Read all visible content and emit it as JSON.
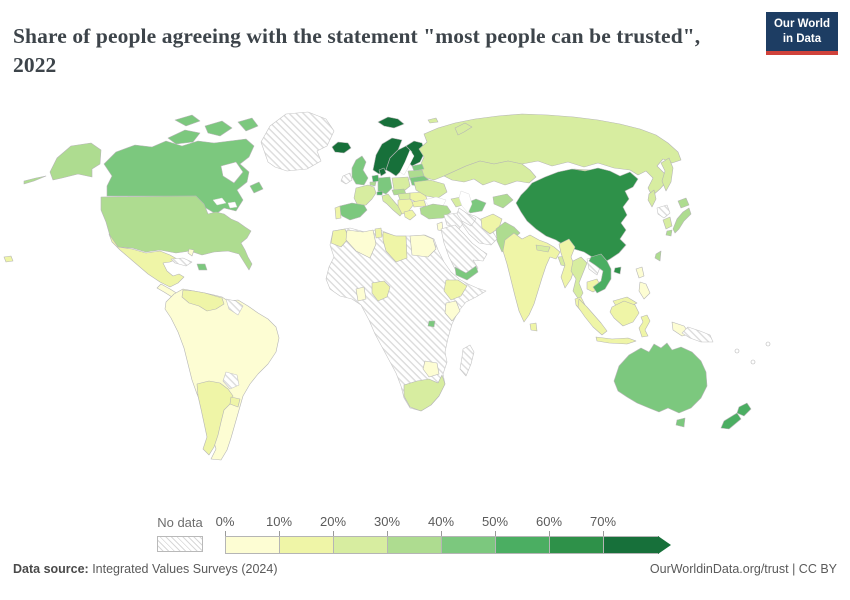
{
  "header": {
    "title": "Share of people agreeing with the statement \"most people can be trusted\", 2022"
  },
  "logo": {
    "line1": "Our World",
    "line2": "in Data",
    "bg": "#1d3d63",
    "accent": "#d0423b"
  },
  "legend": {
    "no_data_label": "No data",
    "ticks": [
      "0%",
      "10%",
      "20%",
      "30%",
      "40%",
      "50%",
      "60%",
      "70%"
    ],
    "bin_colors": [
      "#fdfdd3",
      "#eff5a7",
      "#d7eda0",
      "#aedc90",
      "#7cc87e",
      "#4bae62",
      "#2e9149",
      "#17703a"
    ]
  },
  "footer": {
    "source_label": "Data source:",
    "source_value": " Integrated Values Surveys (2024)",
    "right_text": "OurWorldinData.org/trust | CC BY"
  },
  "chart_data": {
    "type": "choropleth",
    "title": "Share of people agreeing with the statement \"most people can be trusted\", 2022",
    "unit": "%",
    "legend_bins": [
      "0-10%",
      "10-20%",
      "20-30%",
      "30-40%",
      "40-50%",
      "50-60%",
      "60-70%",
      "70%+"
    ],
    "legend_colors": [
      "#fdfdd3",
      "#eff5a7",
      "#d7eda0",
      "#aedc90",
      "#7cc87e",
      "#4bae62",
      "#2e9149",
      "#17703a"
    ],
    "no_data_label": "No data",
    "countries": [
      {
        "name": "Norway",
        "range": "70%+"
      },
      {
        "name": "Sweden",
        "range": "70%+"
      },
      {
        "name": "Finland",
        "range": "70%+"
      },
      {
        "name": "Denmark",
        "range": "70%+"
      },
      {
        "name": "Iceland",
        "range": "70%+"
      },
      {
        "name": "China",
        "range": "60-70%"
      },
      {
        "name": "Netherlands",
        "range": "50-60%"
      },
      {
        "name": "Switzerland",
        "range": "50-60%"
      },
      {
        "name": "New Zealand",
        "range": "50-60%"
      },
      {
        "name": "Vietnam",
        "range": "50-60%"
      },
      {
        "name": "Canada",
        "range": "40-50%"
      },
      {
        "name": "Australia",
        "range": "40-50%"
      },
      {
        "name": "Germany",
        "range": "40-50%"
      },
      {
        "name": "United Kingdom",
        "range": "40-50%"
      },
      {
        "name": "Spain",
        "range": "40-50%"
      },
      {
        "name": "Estonia",
        "range": "40-50%"
      },
      {
        "name": "Belarus",
        "range": "40-50%"
      },
      {
        "name": "Uzbekistan",
        "range": "40-50%"
      },
      {
        "name": "Yemen",
        "range": "40-50%"
      },
      {
        "name": "United States",
        "range": "30-40%"
      },
      {
        "name": "Japan",
        "range": "30-40%"
      },
      {
        "name": "Pakistan",
        "range": "30-40%"
      },
      {
        "name": "Turkey",
        "range": "30-40%"
      },
      {
        "name": "Taiwan",
        "range": "30-40%"
      },
      {
        "name": "Russia",
        "range": "20-30%"
      },
      {
        "name": "Kazakhstan",
        "range": "20-30%"
      },
      {
        "name": "Mongolia",
        "range": "20-30%"
      },
      {
        "name": "Ukraine",
        "range": "20-30%"
      },
      {
        "name": "Poland",
        "range": "20-30%"
      },
      {
        "name": "France",
        "range": "20-30%"
      },
      {
        "name": "Italy",
        "range": "20-30%"
      },
      {
        "name": "South Korea",
        "range": "20-30%"
      },
      {
        "name": "Thailand",
        "range": "20-30%"
      },
      {
        "name": "South Africa",
        "range": "20-30%"
      },
      {
        "name": "Bangladesh",
        "range": "20-30%"
      },
      {
        "name": "Nepal",
        "range": "20-30%"
      },
      {
        "name": "India",
        "range": "10-20%"
      },
      {
        "name": "Mexico",
        "range": "10-20%"
      },
      {
        "name": "Argentina",
        "range": "10-20%"
      },
      {
        "name": "Venezuela",
        "range": "10-20%"
      },
      {
        "name": "Morocco",
        "range": "10-20%"
      },
      {
        "name": "Libya",
        "range": "10-20%"
      },
      {
        "name": "Nigeria",
        "range": "10-20%"
      },
      {
        "name": "Ethiopia",
        "range": "10-20%"
      },
      {
        "name": "Myanmar",
        "range": "10-20%"
      },
      {
        "name": "Indonesia",
        "range": "10-20%"
      },
      {
        "name": "Malaysia",
        "range": "10-20%"
      },
      {
        "name": "Afghanistan",
        "range": "10-20%"
      },
      {
        "name": "Portugal",
        "range": "10-20%"
      },
      {
        "name": "Romania",
        "range": "10-20%"
      },
      {
        "name": "Greece",
        "range": "10-20%"
      },
      {
        "name": "Brazil",
        "range": "0-10%"
      },
      {
        "name": "Colombia",
        "range": "0-10%"
      },
      {
        "name": "Peru",
        "range": "0-10%"
      },
      {
        "name": "Chile",
        "range": "0-10%"
      },
      {
        "name": "Egypt",
        "range": "0-10%"
      },
      {
        "name": "Algeria",
        "range": "0-10%"
      },
      {
        "name": "Kenya",
        "range": "0-10%"
      },
      {
        "name": "Ghana",
        "range": "0-10%"
      },
      {
        "name": "Zimbabwe",
        "range": "0-10%"
      },
      {
        "name": "Philippines",
        "range": "0-10%"
      }
    ],
    "no_data_countries": [
      "Greenland",
      "Ireland",
      "Iran",
      "Iraq",
      "Syria",
      "Saudi Arabia",
      "Turkmenistan",
      "North Korea",
      "Laos",
      "Paraguay",
      "Guyana",
      "Suriname",
      "Cuba",
      "Madagascar",
      "Papua New Guinea",
      "most of Africa"
    ]
  },
  "map": {
    "ocean_color": "#ffffff",
    "border_color": "#b6b6b6",
    "regions": [
      {
        "id": "greenland",
        "bin": "nd",
        "label": "Greenland"
      },
      {
        "id": "canada",
        "bin": 5,
        "label": "Canada"
      },
      {
        "id": "alaska",
        "bin": 4,
        "label": "United States (Alaska)"
      },
      {
        "id": "aleutians",
        "bin": 4,
        "label": "Aleutian Islands"
      },
      {
        "id": "usa",
        "bin": 4,
        "label": "United States"
      },
      {
        "id": "hawaii",
        "bin": 2,
        "label": "Hawaii"
      },
      {
        "id": "mexico",
        "bin": 2,
        "label": "Mexico"
      },
      {
        "id": "central-america",
        "bin": 1,
        "label": "Central America"
      },
      {
        "id": "cuba",
        "bin": "nd",
        "label": "Cuba"
      },
      {
        "id": "bahamas",
        "bin": 1,
        "label": "Bahamas"
      },
      {
        "id": "hispaniola",
        "bin": 5,
        "label": "Dominican Republic"
      },
      {
        "id": "south-america",
        "bin": 1,
        "label": "Brazil / Colombia / Peru / Chile"
      },
      {
        "id": "venezuela",
        "bin": 2,
        "label": "Venezuela"
      },
      {
        "id": "guyana",
        "bin": "nd",
        "label": "Guyana / Suriname"
      },
      {
        "id": "paraguay",
        "bin": "nd",
        "label": "Paraguay"
      },
      {
        "id": "argentina",
        "bin": 2,
        "label": "Argentina"
      },
      {
        "id": "uruguay",
        "bin": 2,
        "label": "Uruguay"
      },
      {
        "id": "iceland",
        "bin": 8,
        "label": "Iceland"
      },
      {
        "id": "svalbard",
        "bin": 8,
        "label": "Svalbard"
      },
      {
        "id": "norway",
        "bin": 8,
        "label": "Norway"
      },
      {
        "id": "sweden",
        "bin": 8,
        "label": "Sweden"
      },
      {
        "id": "finland",
        "bin": 8,
        "label": "Finland"
      },
      {
        "id": "denmark",
        "bin": 8,
        "label": "Denmark"
      },
      {
        "id": "uk",
        "bin": 5,
        "label": "United Kingdom"
      },
      {
        "id": "ireland",
        "bin": "nd",
        "label": "Ireland"
      },
      {
        "id": "russia",
        "bin": 3,
        "label": "Russia"
      },
      {
        "id": "novaya-zemlya",
        "bin": 3,
        "label": "Novaya Zemlya"
      },
      {
        "id": "franz-josef",
        "bin": 3,
        "label": "Franz Josef Land"
      },
      {
        "id": "estonia",
        "bin": 5,
        "label": "Estonia"
      },
      {
        "id": "latvia-lithuania",
        "bin": 4,
        "label": "Latvia / Lithuania"
      },
      {
        "id": "belarus",
        "bin": 5,
        "label": "Belarus"
      },
      {
        "id": "poland",
        "bin": 3,
        "label": "Poland"
      },
      {
        "id": "germany",
        "bin": 5,
        "label": "Germany"
      },
      {
        "id": "netherlands",
        "bin": 6,
        "label": "Netherlands"
      },
      {
        "id": "belgium",
        "bin": 4,
        "label": "Belgium"
      },
      {
        "id": "france",
        "bin": 3,
        "label": "France"
      },
      {
        "id": "switzerland",
        "bin": 6,
        "label": "Switzerland"
      },
      {
        "id": "spain",
        "bin": 5,
        "label": "Spain"
      },
      {
        "id": "portugal",
        "bin": 2,
        "label": "Portugal"
      },
      {
        "id": "italy",
        "bin": 3,
        "label": "Italy"
      },
      {
        "id": "austria-czech",
        "bin": 4,
        "label": "Austria / Czechia"
      },
      {
        "id": "hungary-slovakia",
        "bin": 3,
        "label": "Hungary / Slovakia"
      },
      {
        "id": "balkans",
        "bin": 2,
        "label": "Balkans"
      },
      {
        "id": "greece",
        "bin": 2,
        "label": "Greece"
      },
      {
        "id": "romania",
        "bin": 2,
        "label": "Romania"
      },
      {
        "id": "bulgaria",
        "bin": 2,
        "label": "Bulgaria"
      },
      {
        "id": "ukraine",
        "bin": 3,
        "label": "Ukraine"
      },
      {
        "id": "turkey",
        "bin": 4,
        "label": "Turkey"
      },
      {
        "id": "caucasus",
        "bin": 3,
        "label": "Caucasus"
      },
      {
        "id": "kazakhstan",
        "bin": 3,
        "label": "Kazakhstan"
      },
      {
        "id": "uzbekistan",
        "bin": 5,
        "label": "Uzbekistan"
      },
      {
        "id": "turkmenistan",
        "bin": "nd",
        "label": "Turkmenistan"
      },
      {
        "id": "kyrgyz-tajik",
        "bin": 4,
        "label": "Kyrgyzstan / Tajikistan"
      },
      {
        "id": "iran",
        "bin": "nd",
        "label": "Iran"
      },
      {
        "id": "iraq-syria",
        "bin": "nd",
        "label": "Iraq / Syria"
      },
      {
        "id": "arabia",
        "bin": "nd",
        "label": "Saudi Arabia"
      },
      {
        "id": "yemen",
        "bin": 5,
        "label": "Yemen"
      },
      {
        "id": "israel-jordan",
        "bin": 1,
        "label": "Israel / Jordan"
      },
      {
        "id": "afghanistan",
        "bin": 2,
        "label": "Afghanistan"
      },
      {
        "id": "pakistan",
        "bin": 4,
        "label": "Pakistan"
      },
      {
        "id": "india",
        "bin": 2,
        "label": "India"
      },
      {
        "id": "nepal",
        "bin": 3,
        "label": "Nepal"
      },
      {
        "id": "bangladesh",
        "bin": 3,
        "label": "Bangladesh"
      },
      {
        "id": "sri-lanka",
        "bin": 2,
        "label": "Sri Lanka"
      },
      {
        "id": "mongolia",
        "bin": 3,
        "label": "Mongolia"
      },
      {
        "id": "china",
        "bin": 7,
        "label": "China"
      },
      {
        "id": "hainan",
        "bin": 7,
        "label": "Hainan"
      },
      {
        "id": "taiwan",
        "bin": 4,
        "label": "Taiwan"
      },
      {
        "id": "nkorea",
        "bin": "nd",
        "label": "North Korea"
      },
      {
        "id": "skorea",
        "bin": 3,
        "label": "South Korea"
      },
      {
        "id": "japan",
        "bin": 4,
        "label": "Japan"
      },
      {
        "id": "myanmar",
        "bin": 2,
        "label": "Myanmar"
      },
      {
        "id": "thailand",
        "bin": 3,
        "label": "Thailand"
      },
      {
        "id": "laos",
        "bin": "nd",
        "label": "Laos"
      },
      {
        "id": "cambodia",
        "bin": 2,
        "label": "Cambodia"
      },
      {
        "id": "vietnam",
        "bin": 6,
        "label": "Vietnam"
      },
      {
        "id": "malaysia",
        "bin": 2,
        "label": "Malaysia"
      },
      {
        "id": "indonesia",
        "bin": 2,
        "label": "Indonesia"
      },
      {
        "id": "philippines",
        "bin": 1,
        "label": "Philippines"
      },
      {
        "id": "west-papua",
        "bin": 1,
        "label": "West Papua"
      },
      {
        "id": "png",
        "bin": "nd",
        "label": "Papua New Guinea"
      },
      {
        "id": "africa",
        "bin": "nd",
        "label": "Africa (no data)"
      },
      {
        "id": "morocco",
        "bin": 2,
        "label": "Morocco"
      },
      {
        "id": "algeria",
        "bin": 1,
        "label": "Algeria"
      },
      {
        "id": "tunisia",
        "bin": 2,
        "label": "Tunisia"
      },
      {
        "id": "libya",
        "bin": 2,
        "label": "Libya"
      },
      {
        "id": "egypt",
        "bin": 1,
        "label": "Egypt"
      },
      {
        "id": "nigeria",
        "bin": 2,
        "label": "Nigeria"
      },
      {
        "id": "ghana",
        "bin": 1,
        "label": "Ghana"
      },
      {
        "id": "ethiopia",
        "bin": 2,
        "label": "Ethiopia"
      },
      {
        "id": "kenya",
        "bin": 1,
        "label": "Kenya"
      },
      {
        "id": "rwanda",
        "bin": 5,
        "label": "Rwanda"
      },
      {
        "id": "zimbabwe",
        "bin": 1,
        "label": "Zimbabwe"
      },
      {
        "id": "south-africa",
        "bin": 3,
        "label": "South Africa"
      },
      {
        "id": "madagascar",
        "bin": "nd",
        "label": "Madagascar"
      },
      {
        "id": "australia",
        "bin": 5,
        "label": "Australia"
      },
      {
        "id": "tasmania",
        "bin": 5,
        "label": "Tasmania"
      },
      {
        "id": "new-zealand",
        "bin": 6,
        "label": "New Zealand"
      },
      {
        "id": "pacific-islands",
        "bin": "none",
        "label": "Pacific islands"
      }
    ]
  }
}
